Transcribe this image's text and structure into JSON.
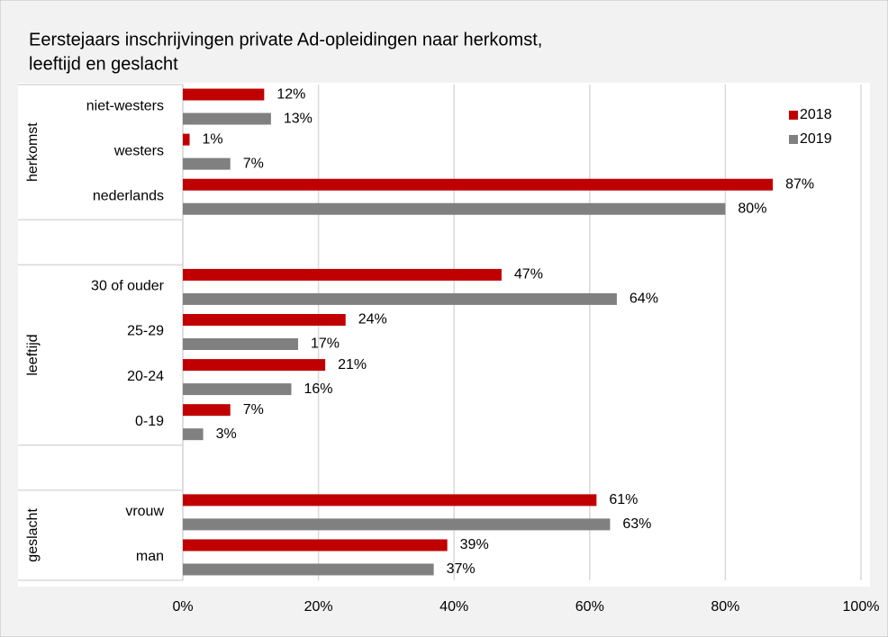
{
  "chart_data": {
    "type": "bar",
    "orientation": "horizontal",
    "title": [
      "Eerstejaars inschrijvingen private Ad-opleidingen naar herkomst,",
      "leeftijd en geslacht"
    ],
    "categories": [
      "niet-westers",
      "westers",
      "nederlands",
      null,
      "30 of ouder",
      "25-29",
      "20-24",
      "0-19",
      null,
      "vrouw",
      "man"
    ],
    "groups": [
      {
        "label": "herkomst",
        "members": [
          "niet-westers",
          "westers",
          "nederlands"
        ]
      },
      {
        "label": "leeftijd",
        "members": [
          "30 of ouder",
          "25-29",
          "20-24",
          "0-19"
        ]
      },
      {
        "label": "geslacht",
        "members": [
          "vrouw",
          "man"
        ]
      }
    ],
    "series": [
      {
        "name": "2018",
        "color": "#c00000",
        "values": [
          12,
          1,
          87,
          null,
          47,
          24,
          21,
          7,
          null,
          61,
          39
        ],
        "value_labels": [
          "12%",
          "1%",
          "87%",
          null,
          "47%",
          "24%",
          "21%",
          "7%",
          null,
          "61%",
          "39%"
        ]
      },
      {
        "name": "2019",
        "color": "#808080",
        "values": [
          13,
          7,
          80,
          null,
          64,
          17,
          16,
          3,
          null,
          63,
          37
        ],
        "value_labels": [
          "13%",
          "7%",
          "80%",
          null,
          "64%",
          "17%",
          "16%",
          "3%",
          null,
          "63%",
          "37%"
        ]
      }
    ],
    "xlim": [
      0,
      100
    ],
    "xticks": [
      {
        "value": 0,
        "label": "0%"
      },
      {
        "value": 20,
        "label": "20%"
      },
      {
        "value": 40,
        "label": "40%"
      },
      {
        "value": 60,
        "label": "60%"
      },
      {
        "value": 80,
        "label": "80%"
      },
      {
        "value": 100,
        "label": "100%"
      }
    ],
    "grid": true,
    "legend": "top-right"
  }
}
